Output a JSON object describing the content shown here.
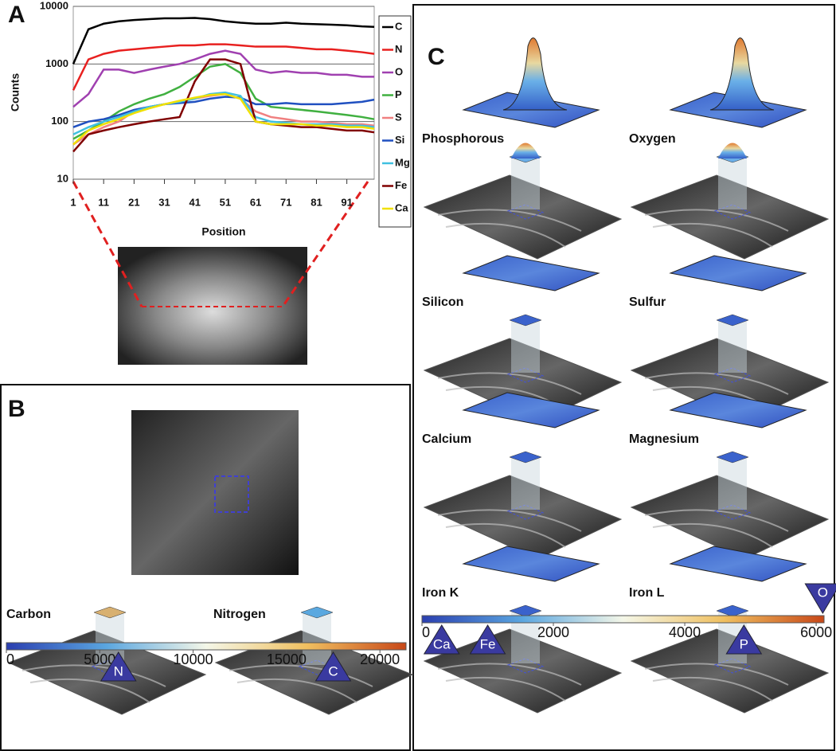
{
  "panel_labels": [
    "A",
    "B",
    "C"
  ],
  "panel_b_maps": [
    "Carbon",
    "Nitrogen"
  ],
  "panel_c_maps": [
    "Phosphorous",
    "Oxygen",
    "Silicon",
    "Sulfur",
    "Calcium",
    "Magnesium",
    "Iron K",
    "Iron L"
  ],
  "chart_data": [
    {
      "type": "line",
      "y_label": "Counts",
      "x_label": "Position",
      "log_scale": true,
      "grid": true,
      "x": [
        1,
        6,
        11,
        16,
        21,
        26,
        31,
        36,
        41,
        46,
        51,
        56,
        61,
        66,
        71,
        76,
        81,
        86,
        91,
        96,
        100
      ],
      "xlim": [
        1,
        100
      ],
      "xticks": [
        1,
        11,
        21,
        31,
        41,
        51,
        61,
        71,
        81,
        91
      ],
      "ylim": [
        10,
        10000
      ],
      "yticks": [
        10,
        100,
        1000,
        10000
      ],
      "series": [
        {
          "name": "C",
          "color": "#000000",
          "values": [
            1000,
            4000,
            5000,
            5500,
            5800,
            6000,
            6200,
            6200,
            6300,
            6000,
            5500,
            5200,
            5000,
            5000,
            5200,
            5000,
            4900,
            4800,
            4700,
            4500,
            4400
          ]
        },
        {
          "name": "N",
          "color": "#e8201f",
          "values": [
            350,
            1200,
            1500,
            1700,
            1800,
            1900,
            2000,
            2100,
            2100,
            2200,
            2200,
            2100,
            2000,
            2000,
            2000,
            1900,
            1800,
            1800,
            1700,
            1600,
            1500
          ]
        },
        {
          "name": "O",
          "color": "#a040b0",
          "values": [
            180,
            300,
            800,
            800,
            700,
            800,
            900,
            1000,
            1200,
            1500,
            1700,
            1500,
            800,
            700,
            750,
            700,
            700,
            650,
            650,
            600,
            600
          ]
        },
        {
          "name": "P",
          "color": "#40b040",
          "values": [
            50,
            70,
            100,
            150,
            200,
            250,
            300,
            400,
            600,
            900,
            1000,
            700,
            250,
            180,
            170,
            160,
            150,
            140,
            130,
            120,
            110
          ]
        },
        {
          "name": "S",
          "color": "#f08080",
          "values": [
            40,
            60,
            80,
            100,
            150,
            180,
            200,
            220,
            250,
            280,
            300,
            250,
            150,
            120,
            110,
            100,
            100,
            95,
            90,
            90,
            85
          ]
        },
        {
          "name": "Si",
          "color": "#2050c0",
          "values": [
            80,
            100,
            110,
            130,
            160,
            180,
            200,
            210,
            220,
            250,
            270,
            260,
            200,
            200,
            210,
            200,
            200,
            200,
            210,
            220,
            240
          ]
        },
        {
          "name": "Mg",
          "color": "#40c0e0",
          "values": [
            60,
            80,
            100,
            120,
            150,
            180,
            200,
            220,
            250,
            300,
            320,
            280,
            120,
            100,
            95,
            90,
            90,
            90,
            85,
            85,
            80
          ]
        },
        {
          "name": "Fe",
          "color": "#800000",
          "values": [
            30,
            60,
            70,
            80,
            90,
            100,
            110,
            120,
            500,
            1200,
            1200,
            1000,
            100,
            90,
            85,
            80,
            80,
            75,
            70,
            70,
            65
          ]
        },
        {
          "name": "Ca",
          "color": "#f0e000",
          "values": [
            40,
            70,
            90,
            110,
            140,
            170,
            200,
            230,
            260,
            290,
            300,
            250,
            100,
            90,
            90,
            90,
            85,
            85,
            80,
            80,
            75
          ]
        }
      ]
    },
    {
      "type": "colorbar",
      "xlim": [
        0,
        21400
      ],
      "xticks": [
        0,
        5000,
        10000,
        15000,
        20000
      ],
      "categories": [
        "N",
        "C"
      ],
      "values": [
        6000,
        17500
      ],
      "marker_sides": [
        "below",
        "below"
      ],
      "color": "#3a3aa0"
    },
    {
      "type": "colorbar",
      "xlim": [
        0,
        6120
      ],
      "xticks": [
        0,
        2000,
        4000,
        6000
      ],
      "categories": [
        "Ca",
        "Fe",
        "P",
        "O"
      ],
      "values": [
        300,
        1000,
        4900,
        6100
      ],
      "marker_sides": [
        "below",
        "below",
        "below",
        "above"
      ],
      "color": "#3a3aa0"
    }
  ]
}
